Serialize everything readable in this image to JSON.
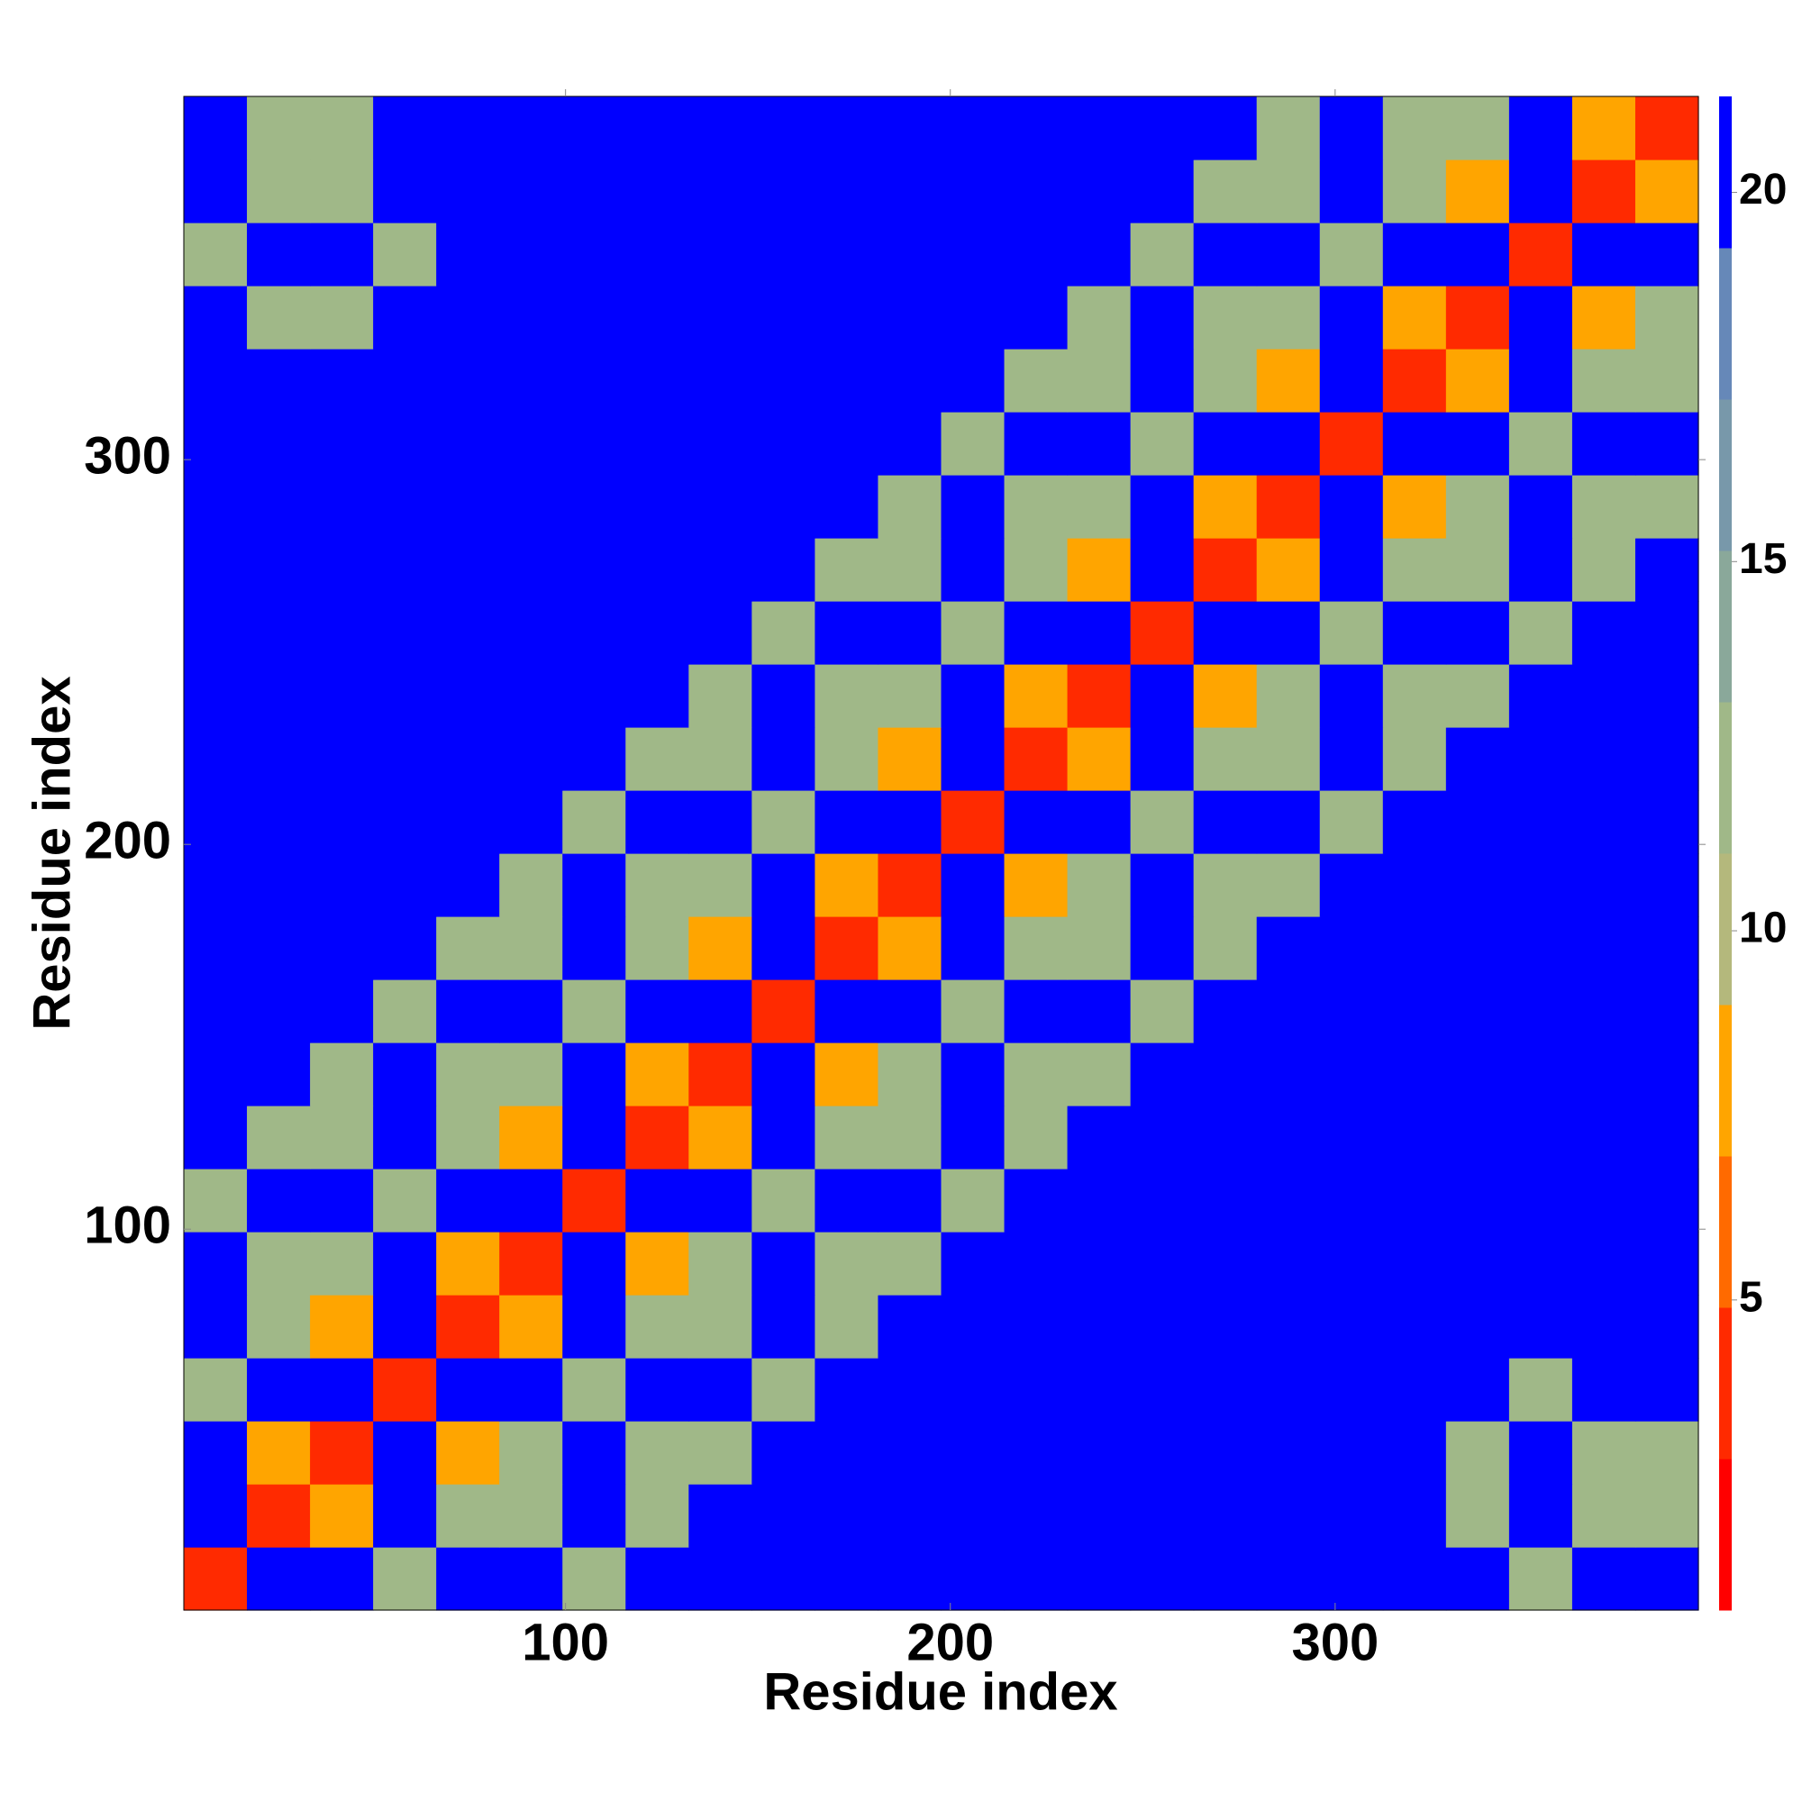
{
  "chart_data": {
    "type": "heatmap",
    "xlabel": "Residue index",
    "ylabel": "Residue index",
    "xlim": [
      0.8,
      394.4
    ],
    "ylim": [
      1,
      394.4
    ],
    "xticks": [
      100,
      200,
      300
    ],
    "yticks": [
      100,
      200,
      300
    ],
    "clim": [
      0.8,
      21.3
    ],
    "cticks": [
      5,
      10,
      15,
      20
    ],
    "colors": [
      "#ff0000",
      "#ff2a00",
      "#ff6a00",
      "#ffa500",
      "#b4b87c",
      "#a0b888",
      "#8aa89a",
      "#7898aa",
      "#6688b8",
      "#0000ff"
    ],
    "z": [
      [
        3,
        21,
        21,
        13,
        21,
        21,
        13,
        21,
        21,
        21,
        21,
        21,
        21,
        21,
        21,
        21,
        21,
        21,
        21,
        21,
        21,
        13,
        21,
        21
      ],
      [
        21,
        3,
        7,
        21,
        13,
        13,
        21,
        13,
        21,
        21,
        21,
        21,
        21,
        21,
        21,
        21,
        21,
        21,
        21,
        21,
        13,
        21,
        13,
        13
      ],
      [
        21,
        7,
        3,
        21,
        7,
        13,
        21,
        13,
        13,
        21,
        21,
        21,
        21,
        21,
        21,
        21,
        21,
        21,
        21,
        21,
        13,
        21,
        13,
        13
      ],
      [
        13,
        21,
        21,
        3,
        21,
        21,
        13,
        21,
        21,
        13,
        21,
        21,
        21,
        21,
        21,
        21,
        21,
        21,
        21,
        21,
        21,
        13,
        21,
        21
      ],
      [
        21,
        13,
        7,
        21,
        3,
        7,
        21,
        13,
        13,
        21,
        13,
        21,
        21,
        21,
        21,
        21,
        21,
        21,
        21,
        21,
        21,
        21,
        21,
        21
      ],
      [
        21,
        13,
        13,
        21,
        7,
        3,
        21,
        7,
        13,
        21,
        13,
        13,
        21,
        21,
        21,
        21,
        21,
        21,
        21,
        21,
        21,
        21,
        21,
        21
      ],
      [
        13,
        21,
        21,
        13,
        21,
        21,
        3,
        21,
        21,
        13,
        21,
        21,
        13,
        21,
        21,
        21,
        21,
        21,
        21,
        21,
        21,
        21,
        21,
        21
      ],
      [
        21,
        13,
        13,
        21,
        13,
        7,
        21,
        3,
        7,
        21,
        13,
        13,
        21,
        13,
        21,
        21,
        21,
        21,
        21,
        21,
        21,
        21,
        21,
        21
      ],
      [
        21,
        21,
        13,
        21,
        13,
        13,
        21,
        7,
        3,
        21,
        7,
        13,
        21,
        13,
        13,
        21,
        21,
        21,
        21,
        21,
        21,
        21,
        21,
        21
      ],
      [
        21,
        21,
        21,
        13,
        21,
        21,
        13,
        21,
        21,
        3,
        21,
        21,
        13,
        21,
        21,
        13,
        21,
        21,
        21,
        21,
        21,
        21,
        21,
        21
      ],
      [
        21,
        21,
        21,
        21,
        13,
        13,
        21,
        13,
        7,
        21,
        3,
        7,
        21,
        13,
        13,
        21,
        13,
        21,
        21,
        21,
        21,
        21,
        21,
        21
      ],
      [
        21,
        21,
        21,
        21,
        21,
        13,
        21,
        13,
        13,
        21,
        7,
        3,
        21,
        7,
        13,
        21,
        13,
        13,
        21,
        21,
        21,
        21,
        21,
        21
      ],
      [
        21,
        21,
        21,
        21,
        21,
        21,
        13,
        21,
        21,
        13,
        21,
        21,
        3,
        21,
        21,
        13,
        21,
        21,
        13,
        21,
        21,
        21,
        21,
        21
      ],
      [
        21,
        21,
        21,
        21,
        21,
        21,
        21,
        13,
        13,
        21,
        13,
        7,
        21,
        3,
        7,
        21,
        13,
        13,
        21,
        13,
        21,
        21,
        21,
        21
      ],
      [
        21,
        21,
        21,
        21,
        21,
        21,
        21,
        21,
        13,
        21,
        13,
        13,
        21,
        7,
        3,
        21,
        7,
        13,
        21,
        13,
        13,
        21,
        21,
        21
      ],
      [
        21,
        21,
        21,
        21,
        21,
        21,
        21,
        21,
        21,
        13,
        21,
        21,
        13,
        21,
        21,
        3,
        21,
        21,
        13,
        21,
        21,
        13,
        21,
        21
      ],
      [
        21,
        21,
        21,
        21,
        21,
        21,
        21,
        21,
        21,
        21,
        13,
        13,
        21,
        13,
        7,
        21,
        3,
        7,
        21,
        13,
        13,
        21,
        13,
        21
      ],
      [
        21,
        21,
        21,
        21,
        21,
        21,
        21,
        21,
        21,
        21,
        21,
        13,
        21,
        13,
        13,
        21,
        7,
        3,
        21,
        7,
        13,
        21,
        13,
        13
      ],
      [
        21,
        21,
        21,
        21,
        21,
        21,
        21,
        21,
        21,
        21,
        21,
        21,
        13,
        21,
        21,
        13,
        21,
        21,
        3,
        21,
        21,
        13,
        21,
        21
      ],
      [
        21,
        21,
        21,
        21,
        21,
        21,
        21,
        21,
        21,
        21,
        21,
        21,
        21,
        13,
        13,
        21,
        13,
        7,
        21,
        3,
        7,
        21,
        13,
        13
      ],
      [
        21,
        13,
        13,
        21,
        21,
        21,
        21,
        21,
        21,
        21,
        21,
        21,
        21,
        21,
        13,
        21,
        13,
        13,
        21,
        7,
        3,
        21,
        7,
        13
      ],
      [
        13,
        21,
        21,
        13,
        21,
        21,
        21,
        21,
        21,
        21,
        21,
        21,
        21,
        21,
        21,
        13,
        21,
        21,
        13,
        21,
        21,
        3,
        21,
        21
      ],
      [
        21,
        13,
        13,
        21,
        21,
        21,
        21,
        21,
        21,
        21,
        21,
        21,
        21,
        21,
        21,
        21,
        13,
        13,
        21,
        13,
        7,
        21,
        3,
        7
      ],
      [
        21,
        13,
        13,
        21,
        21,
        21,
        21,
        21,
        21,
        21,
        21,
        21,
        21,
        21,
        21,
        21,
        21,
        13,
        21,
        13,
        13,
        21,
        7,
        3
      ]
    ]
  }
}
